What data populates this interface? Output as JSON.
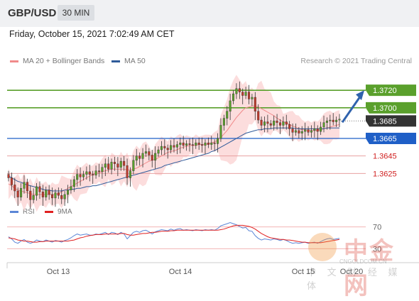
{
  "header": {
    "symbol": "GBP/USD",
    "timeframe": "30 MIN"
  },
  "datetime": "Friday, October 15, 2021 7:02:49 AM CET",
  "legend": [
    {
      "label": "MA 20 + Bollinger Bands",
      "color": "#f08a8a"
    },
    {
      "label": "MA 50",
      "color": "#2f5b9a"
    }
  ],
  "credit": "Research © 2021 Trading Central",
  "rsi_legend": [
    {
      "label": "RSI",
      "color": "#5b86d6"
    },
    {
      "label": "9MA",
      "color": "#e02020"
    }
  ],
  "watermark": {
    "name": "中金网",
    "url": "CNGOLDCOM.CN",
    "sub": "中 文 财 经 媒 体"
  },
  "colors": {
    "resistance": "#5aa02c",
    "pivot": "#1f5fc7",
    "support": "#e8a0a0",
    "support_text": "#d02020",
    "current": "#333333",
    "bull": "#5aa02c",
    "bear": "#c0392b",
    "band": "#fbd5d5"
  },
  "chart_data": {
    "type": "candlestick",
    "x_ticks": [
      "Oct 13",
      "Oct 14",
      "Oct 15",
      "Oct 20"
    ],
    "price_range": [
      1.3588,
      1.3742
    ],
    "levels": [
      {
        "value": "1.3720",
        "kind": "resistance"
      },
      {
        "value": "1.3700",
        "kind": "resistance"
      },
      {
        "value": "1.3685",
        "kind": "current"
      },
      {
        "value": "1.3665",
        "kind": "pivot"
      },
      {
        "value": "1.3645",
        "kind": "support"
      },
      {
        "value": "1.3625",
        "kind": "support"
      }
    ],
    "close": [
      1.362,
      1.3612,
      1.3605,
      1.3598,
      1.3608,
      1.3615,
      1.3605,
      1.3595,
      1.36,
      1.361,
      1.3604,
      1.3598,
      1.3606,
      1.3601,
      1.3597,
      1.3603,
      1.36,
      1.3596,
      1.3601,
      1.3606,
      1.361,
      1.3618,
      1.3624,
      1.3621,
      1.3624,
      1.3627,
      1.3624,
      1.3623,
      1.3628,
      1.3627,
      1.3632,
      1.3636,
      1.363,
      1.3638,
      1.3636,
      1.3632,
      1.3639,
      1.3634,
      1.362,
      1.3628,
      1.364,
      1.3645,
      1.3642,
      1.3648,
      1.365,
      1.3646,
      1.364,
      1.3648,
      1.3652,
      1.3656,
      1.3654,
      1.3652,
      1.3657,
      1.3655,
      1.3658,
      1.366,
      1.3657,
      1.3659,
      1.3658,
      1.3657,
      1.366,
      1.3658,
      1.3657,
      1.366,
      1.3658,
      1.366,
      1.3659,
      1.3665,
      1.368,
      1.3688,
      1.3696,
      1.3708,
      1.3716,
      1.3722,
      1.3718,
      1.3714,
      1.3718,
      1.371,
      1.3712,
      1.3696,
      1.3686,
      1.368,
      1.3684,
      1.3682,
      1.368,
      1.3685,
      1.3683,
      1.368,
      1.3684,
      1.3681,
      1.3676,
      1.3672,
      1.3674,
      1.3671,
      1.3673,
      1.3675,
      1.3672,
      1.3674,
      1.3676,
      1.3673,
      1.3678,
      1.3683,
      1.3685,
      1.3686,
      1.3684,
      1.3686,
      1.3687
    ],
    "ma20": [
      1.3613,
      1.3611,
      1.3608,
      1.3606,
      1.3605,
      1.3604,
      1.3603,
      1.3602,
      1.3601,
      1.3601,
      1.3601,
      1.3601,
      1.3601,
      1.3601,
      1.3601,
      1.3601,
      1.3602,
      1.3604,
      1.3606,
      1.3608,
      1.361,
      1.3612,
      1.3614,
      1.3616,
      1.3618,
      1.362,
      1.3622,
      1.3624,
      1.3625,
      1.3626,
      1.3627,
      1.3628,
      1.3629,
      1.363,
      1.363,
      1.363,
      1.363,
      1.363,
      1.3629,
      1.3629,
      1.363,
      1.3631,
      1.3633,
      1.3635,
      1.3637,
      1.3639,
      1.364,
      1.3641,
      1.3643,
      1.3645,
      1.3647,
      1.3649,
      1.365,
      1.3651,
      1.3652,
      1.3654,
      1.3655,
      1.3656,
      1.3657,
      1.3657,
      1.3657,
      1.3658,
      1.3658,
      1.3658,
      1.3659,
      1.366,
      1.3661,
      1.3663,
      1.3666,
      1.367,
      1.3674,
      1.3679,
      1.3684,
      1.3689,
      1.3693,
      1.3697,
      1.37,
      1.3701,
      1.3702,
      1.3702,
      1.3701,
      1.3699,
      1.3697,
      1.3695,
      1.3693,
      1.3691,
      1.3688,
      1.3686,
      1.3684,
      1.3683,
      1.3681,
      1.3679,
      1.3678,
      1.3676,
      1.3675,
      1.3675,
      1.3674,
      1.3674,
      1.3674,
      1.3674,
      1.3675,
      1.3676,
      1.3677,
      1.3678,
      1.3679,
      1.368,
      1.3681
    ],
    "ma50": [
      1.3622,
      1.362,
      1.3618,
      1.3616,
      1.3615,
      1.3613,
      1.3612,
      1.3611,
      1.361,
      1.3609,
      1.3608,
      1.3607,
      1.3606,
      1.3606,
      1.3605,
      1.3605,
      1.3605,
      1.3605,
      1.3606,
      1.3606,
      1.3607,
      1.3607,
      1.3608,
      1.3608,
      1.3609,
      1.361,
      1.361,
      1.3611,
      1.3611,
      1.3612,
      1.3613,
      1.3614,
      1.3615,
      1.3616,
      1.3617,
      1.3618,
      1.3619,
      1.362,
      1.3621,
      1.3622,
      1.3623,
      1.3624,
      1.3625,
      1.3626,
      1.3627,
      1.3628,
      1.3629,
      1.363,
      1.3631,
      1.3632,
      1.3634,
      1.3635,
      1.3636,
      1.3637,
      1.3638,
      1.3639,
      1.364,
      1.3641,
      1.3642,
      1.3643,
      1.3644,
      1.3645,
      1.3646,
      1.3647,
      1.3648,
      1.365,
      1.3651,
      1.3653,
      1.3655,
      1.3657,
      1.3659,
      1.3661,
      1.3663,
      1.3665,
      1.3667,
      1.3669,
      1.3671,
      1.3672,
      1.3673,
      1.3674,
      1.3675,
      1.3675,
      1.3676,
      1.3676,
      1.3676,
      1.3677,
      1.3677,
      1.3677,
      1.3677,
      1.3677,
      1.3677,
      1.3677,
      1.3676,
      1.3676,
      1.3676,
      1.3676,
      1.3676,
      1.3676,
      1.3676,
      1.3676,
      1.3676,
      1.3676,
      1.3677,
      1.3677,
      1.3677,
      1.3677,
      1.3677
    ],
    "rsi_range": [
      20,
      80
    ],
    "rsi_ticks": [
      "70",
      "30"
    ],
    "rsi": [
      52,
      48,
      42,
      40,
      44,
      47,
      42,
      40,
      42,
      46,
      44,
      43,
      46,
      44,
      42,
      45,
      44,
      42,
      45,
      47,
      50,
      54,
      57,
      55,
      56,
      57,
      55,
      55,
      57,
      56,
      58,
      60,
      56,
      60,
      59,
      56,
      60,
      57,
      48,
      54,
      60,
      62,
      60,
      63,
      64,
      61,
      57,
      61,
      63,
      65,
      64,
      63,
      66,
      64,
      66,
      67,
      64,
      65,
      64,
      63,
      65,
      64,
      63,
      65,
      64,
      65,
      64,
      67,
      72,
      74,
      76,
      78,
      76,
      74,
      71,
      68,
      69,
      63,
      62,
      54,
      49,
      46,
      48,
      47,
      46,
      48,
      47,
      45,
      47,
      45,
      42,
      40,
      41,
      40,
      41,
      42,
      40,
      41,
      42,
      40,
      43,
      46,
      48,
      49,
      47,
      48,
      49
    ],
    "rsi_ma": [
      50,
      49,
      48,
      46,
      45,
      44,
      44,
      43,
      42,
      42,
      43,
      43,
      44,
      44,
      44,
      44,
      44,
      44,
      44,
      44,
      45,
      46,
      48,
      50,
      51,
      53,
      54,
      55,
      56,
      56,
      56,
      57,
      57,
      57,
      57,
      57,
      58,
      58,
      56,
      55,
      55,
      56,
      57,
      58,
      58,
      59,
      60,
      60,
      61,
      62,
      62,
      62,
      63,
      63,
      64,
      64,
      64,
      64,
      64,
      64,
      64,
      64,
      64,
      64,
      64,
      64,
      64,
      64,
      65,
      66,
      68,
      70,
      72,
      73,
      73,
      73,
      72,
      71,
      69,
      66,
      62,
      58,
      55,
      52,
      50,
      49,
      48,
      47,
      47,
      46,
      46,
      45,
      44,
      43,
      42,
      42,
      41,
      41,
      41,
      41,
      41,
      42,
      43,
      44,
      45,
      46,
      47
    ]
  }
}
